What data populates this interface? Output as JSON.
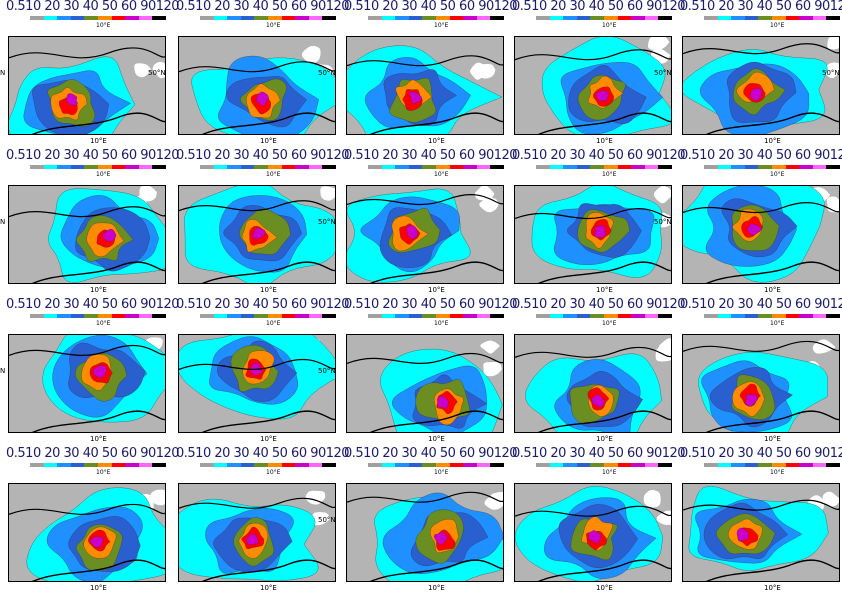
{
  "colorbar": {
    "labels": "0.510 20 30 40 50 60 90120",
    "colors": [
      "#a0a0a0",
      "#00ffff",
      "#1e90ff",
      "#2a5fd0",
      "#6b8e23",
      "#ff8c00",
      "#ff0000",
      "#cc00cc",
      "#ff66ff",
      "#000000"
    ]
  },
  "axis": {
    "x_tick": "10°E",
    "lat_tick": "50°N",
    "n_edge": "N"
  },
  "map_colors": {
    "land": "#b4b4b4",
    "sea": "#ffffff",
    "c1": "#00ffff",
    "c2": "#1e90ff",
    "c3": "#2a5fd0",
    "c4": "#6b8e23",
    "c5": "#ff8c00",
    "c6": "#ff0000",
    "c7": "#cc00cc",
    "c8": "#ff66ff"
  },
  "panels": [
    {
      "id": 1,
      "lat_label": true,
      "n_edge": true
    },
    {
      "id": 2,
      "lat_label": true,
      "n_edge": false
    },
    {
      "id": 3,
      "lat_label": false,
      "n_edge": false
    },
    {
      "id": 4,
      "lat_label": true,
      "n_edge": false
    },
    {
      "id": 5,
      "lat_label": true,
      "n_edge": false
    },
    {
      "id": 6,
      "lat_label": false,
      "n_edge": true
    },
    {
      "id": 7,
      "lat_label": true,
      "n_edge": false
    },
    {
      "id": 8,
      "lat_label": false,
      "n_edge": false
    },
    {
      "id": 9,
      "lat_label": true,
      "n_edge": false
    },
    {
      "id": 10,
      "lat_label": false,
      "n_edge": false
    },
    {
      "id": 11,
      "lat_label": false,
      "n_edge": true
    },
    {
      "id": 12,
      "lat_label": true,
      "n_edge": false
    },
    {
      "id": 13,
      "lat_label": false,
      "n_edge": false
    },
    {
      "id": 14,
      "lat_label": false,
      "n_edge": false
    },
    {
      "id": 15,
      "lat_label": false,
      "n_edge": false
    },
    {
      "id": 16,
      "lat_label": false,
      "n_edge": false
    },
    {
      "id": 17,
      "lat_label": true,
      "n_edge": false
    },
    {
      "id": 18,
      "lat_label": false,
      "n_edge": false
    },
    {
      "id": 19,
      "lat_label": false,
      "n_edge": false
    },
    {
      "id": 20,
      "lat_label": false,
      "n_edge": false
    }
  ]
}
